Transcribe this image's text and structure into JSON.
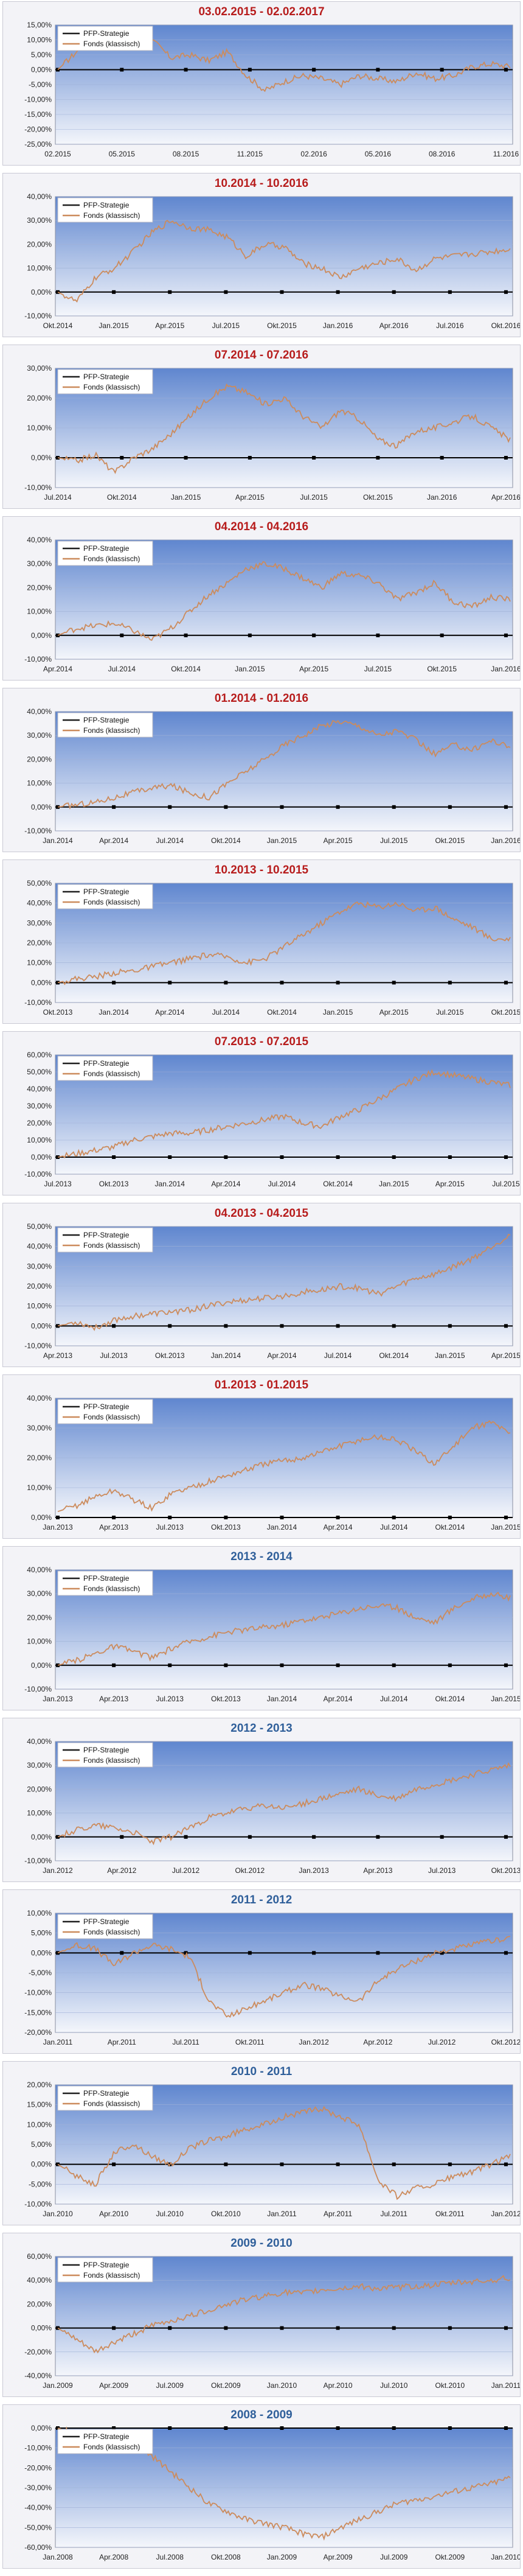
{
  "chart_data": [
    {
      "type": "line",
      "title": "03.02.2015 - 02.02.2017",
      "title_color": "#b71c1c",
      "x_ticks": [
        "02.2015",
        "05.2015",
        "08.2015",
        "11.2015",
        "02.2016",
        "05.2016",
        "08.2016",
        "11.2016"
      ],
      "y_ticks": [
        "15,00%",
        "10,00%",
        "5,00%",
        "0,00%",
        "-5,00%",
        "-10,00%",
        "-15,00%",
        "-20,00%",
        "-25,00%"
      ],
      "ylim": [
        -25,
        15
      ],
      "series": [
        {
          "name": "PFP-Strategie",
          "color": "#1f1f1f",
          "values": [
            0,
            0
          ]
        },
        {
          "name": "Fonds (klassisch)",
          "color": "#cc8b5c",
          "values": [
            0,
            6,
            12,
            11,
            9,
            10,
            4,
            5,
            3,
            6,
            -2,
            -7,
            -4,
            -2,
            -3,
            -5,
            -2,
            -3,
            -4,
            -1,
            -3,
            -2,
            1,
            2,
            1
          ]
        }
      ]
    },
    {
      "type": "line",
      "title": "10.2014 - 10.2016",
      "title_color": "#b71c1c",
      "x_ticks": [
        "Okt.2014",
        "Jan.2015",
        "Apr.2015",
        "Jul.2015",
        "Okt.2015",
        "Jan.2016",
        "Apr.2016",
        "Jul.2016",
        "Okt.2016"
      ],
      "y_ticks": [
        "40,00%",
        "30,00%",
        "20,00%",
        "10,00%",
        "0,00%",
        "-10,00%"
      ],
      "ylim": [
        -10,
        40
      ],
      "series": [
        {
          "name": "PFP-Strategie",
          "color": "#1f1f1f",
          "values": [
            0,
            0
          ]
        },
        {
          "name": "Fonds (klassisch)",
          "color": "#cc8b5c",
          "values": [
            0,
            -4,
            6,
            10,
            17,
            25,
            30,
            27,
            26,
            23,
            15,
            20,
            19,
            12,
            10,
            6,
            10,
            12,
            14,
            9,
            14,
            15,
            16,
            17,
            18
          ]
        }
      ]
    },
    {
      "type": "line",
      "title": "07.2014 - 07.2016",
      "title_color": "#b71c1c",
      "x_ticks": [
        "Jul.2014",
        "Okt.2014",
        "Jan.2015",
        "Apr.2015",
        "Jul.2015",
        "Okt.2015",
        "Jan.2016",
        "Apr.2016"
      ],
      "y_ticks": [
        "30,00%",
        "20,00%",
        "10,00%",
        "0,00%",
        "-10,00%"
      ],
      "ylim": [
        -10,
        30
      ],
      "series": [
        {
          "name": "PFP-Strategie",
          "color": "#1f1f1f",
          "values": [
            0,
            0
          ]
        },
        {
          "name": "Fonds (klassisch)",
          "color": "#cc8b5c",
          "values": [
            0,
            -1,
            1,
            -5,
            0,
            3,
            8,
            14,
            20,
            24,
            22,
            18,
            20,
            14,
            10,
            16,
            13,
            6,
            4,
            9,
            10,
            12,
            14,
            10,
            6
          ]
        }
      ]
    },
    {
      "type": "line",
      "title": "04.2014 - 04.2016",
      "title_color": "#b71c1c",
      "x_ticks": [
        "Apr.2014",
        "Jul.2014",
        "Okt.2014",
        "Jan.2015",
        "Apr.2015",
        "Jul.2015",
        "Okt.2015",
        "Jan.2016"
      ],
      "y_ticks": [
        "40,00%",
        "30,00%",
        "20,00%",
        "10,00%",
        "0,00%",
        "-10,00%"
      ],
      "ylim": [
        -10,
        40
      ],
      "series": [
        {
          "name": "PFP-Strategie",
          "color": "#1f1f1f",
          "values": [
            0,
            0
          ]
        },
        {
          "name": "Fonds (klassisch)",
          "color": "#cc8b5c",
          "values": [
            0,
            3,
            4,
            5,
            2,
            -2,
            3,
            10,
            17,
            22,
            28,
            30,
            28,
            24,
            20,
            26,
            25,
            22,
            15,
            18,
            22,
            14,
            12,
            16,
            15
          ]
        }
      ]
    },
    {
      "type": "line",
      "title": "01.2014 - 01.2016",
      "title_color": "#b71c1c",
      "x_ticks": [
        "Jan.2014",
        "Apr.2014",
        "Jul.2014",
        "Okt.2014",
        "Jan.2015",
        "Apr.2015",
        "Jul.2015",
        "Okt.2015",
        "Jan.2016"
      ],
      "y_ticks": [
        "40,00%",
        "30,00%",
        "20,00%",
        "10,00%",
        "0,00%",
        "-10,00%"
      ],
      "ylim": [
        -10,
        40
      ],
      "series": [
        {
          "name": "PFP-Strategie",
          "color": "#1f1f1f",
          "values": [
            0,
            0
          ]
        },
        {
          "name": "Fonds (klassisch)",
          "color": "#cc8b5c",
          "values": [
            0,
            1,
            2,
            4,
            6,
            8,
            9,
            6,
            4,
            10,
            15,
            20,
            26,
            30,
            34,
            36,
            34,
            30,
            32,
            28,
            22,
            26,
            24,
            28,
            25
          ]
        }
      ]
    },
    {
      "type": "line",
      "title": "10.2013 - 10.2015",
      "title_color": "#b71c1c",
      "x_ticks": [
        "Okt.2013",
        "Jan.2014",
        "Apr.2014",
        "Jul.2014",
        "Okt.2014",
        "Jan.2015",
        "Apr.2015",
        "Jul.2015",
        "Okt.2015"
      ],
      "y_ticks": [
        "50,00%",
        "40,00%",
        "30,00%",
        "20,00%",
        "10,00%",
        "0,00%",
        "-10,00%"
      ],
      "ylim": [
        -10,
        50
      ],
      "series": [
        {
          "name": "PFP-Strategie",
          "color": "#1f1f1f",
          "values": [
            0,
            0
          ]
        },
        {
          "name": "Fonds (klassisch)",
          "color": "#cc8b5c",
          "values": [
            0,
            2,
            3,
            5,
            6,
            8,
            10,
            12,
            14,
            13,
            10,
            12,
            18,
            24,
            30,
            36,
            40,
            38,
            40,
            36,
            38,
            32,
            28,
            22,
            22
          ]
        }
      ]
    },
    {
      "type": "line",
      "title": "07.2013 - 07.2015",
      "title_color": "#b71c1c",
      "x_ticks": [
        "Jul.2013",
        "Okt.2013",
        "Jan.2014",
        "Apr.2014",
        "Jul.2014",
        "Okt.2014",
        "Jan.2015",
        "Apr.2015",
        "Jul.2015"
      ],
      "y_ticks": [
        "60,00%",
        "50,00%",
        "40,00%",
        "30,00%",
        "20,00%",
        "10,00%",
        "0,00%",
        "-10,00%"
      ],
      "ylim": [
        -10,
        60
      ],
      "series": [
        {
          "name": "PFP-Strategie",
          "color": "#1f1f1f",
          "values": [
            0,
            0
          ]
        },
        {
          "name": "Fonds (klassisch)",
          "color": "#cc8b5c",
          "values": [
            0,
            2,
            4,
            6,
            10,
            12,
            14,
            14,
            16,
            18,
            20,
            22,
            24,
            20,
            18,
            24,
            28,
            34,
            40,
            46,
            50,
            48,
            46,
            44,
            42
          ]
        }
      ]
    },
    {
      "type": "line",
      "title": "04.2013 - 04.2015",
      "title_color": "#b71c1c",
      "x_ticks": [
        "Apr.2013",
        "Jul.2013",
        "Okt.2013",
        "Jan.2014",
        "Apr.2014",
        "Jul.2014",
        "Okt.2014",
        "Jan.2015",
        "Apr.2015"
      ],
      "y_ticks": [
        "50,00%",
        "40,00%",
        "30,00%",
        "20,00%",
        "10,00%",
        "0,00%",
        "-10,00%"
      ],
      "ylim": [
        -10,
        50
      ],
      "series": [
        {
          "name": "PFP-Strategie",
          "color": "#1f1f1f",
          "values": [
            0,
            0
          ]
        },
        {
          "name": "Fonds (klassisch)",
          "color": "#cc8b5c",
          "values": [
            0,
            2,
            -1,
            3,
            5,
            6,
            7,
            8,
            10,
            12,
            13,
            14,
            15,
            17,
            18,
            20,
            19,
            16,
            20,
            24,
            26,
            30,
            34,
            40,
            46
          ]
        }
      ]
    },
    {
      "type": "line",
      "title": "01.2013 - 01.2015",
      "title_color": "#b71c1c",
      "x_ticks": [
        "Jan.2013",
        "Apr.2013",
        "Jul.2013",
        "Okt.2013",
        "Jan.2014",
        "Apr.2014",
        "Jul.2014",
        "Okt.2014",
        "Jan.2015"
      ],
      "y_ticks": [
        "40,00%",
        "30,00%",
        "20,00%",
        "10,00%",
        "0,00%"
      ],
      "ylim": [
        0,
        40
      ],
      "series": [
        {
          "name": "PFP-Strategie",
          "color": "#1f1f1f",
          "values": [
            0,
            0
          ]
        },
        {
          "name": "Fonds (klassisch)",
          "color": "#cc8b5c",
          "values": [
            2,
            4,
            7,
            9,
            6,
            3,
            8,
            10,
            12,
            14,
            16,
            18,
            19,
            20,
            22,
            24,
            26,
            27,
            26,
            22,
            18,
            24,
            30,
            32,
            28
          ]
        }
      ]
    },
    {
      "type": "line",
      "title": "2013 - 2014",
      "title_color": "#2f5f9a",
      "x_ticks": [
        "Jan.2013",
        "Apr.2013",
        "Jul.2013",
        "Okt.2013",
        "Jan.2014",
        "Apr.2014",
        "Jul.2014",
        "Okt.2014",
        "Jan.2015"
      ],
      "y_ticks": [
        "40,00%",
        "30,00%",
        "20,00%",
        "10,00%",
        "0,00%",
        "-10,00%"
      ],
      "ylim": [
        -10,
        40
      ],
      "series": [
        {
          "name": "PFP-Strategie",
          "color": "#1f1f1f",
          "values": [
            0,
            0
          ]
        },
        {
          "name": "Fonds (klassisch)",
          "color": "#cc8b5c",
          "values": [
            0,
            2,
            5,
            8,
            6,
            3,
            7,
            10,
            12,
            14,
            15,
            16,
            17,
            19,
            20,
            22,
            24,
            25,
            24,
            20,
            18,
            24,
            28,
            30,
            28
          ]
        }
      ]
    },
    {
      "type": "line",
      "title": "2012 - 2013",
      "title_color": "#2f5f9a",
      "x_ticks": [
        "Jan.2012",
        "Apr.2012",
        "Jul.2012",
        "Okt.2012",
        "Jan.2013",
        "Apr.2013",
        "Jul.2013",
        "Okt.2013"
      ],
      "y_ticks": [
        "40,00%",
        "30,00%",
        "20,00%",
        "10,00%",
        "0,00%",
        "-10,00%"
      ],
      "ylim": [
        -10,
        40
      ],
      "series": [
        {
          "name": "PFP-Strategie",
          "color": "#1f1f1f",
          "values": [
            0,
            0
          ]
        },
        {
          "name": "Fonds (klassisch)",
          "color": "#cc8b5c",
          "values": [
            0,
            3,
            5,
            4,
            2,
            -2,
            0,
            4,
            8,
            10,
            12,
            13,
            12,
            14,
            16,
            18,
            20,
            17,
            16,
            20,
            22,
            24,
            26,
            28,
            30
          ]
        }
      ]
    },
    {
      "type": "line",
      "title": "2011 - 2012",
      "title_color": "#2f5f9a",
      "x_ticks": [
        "Jan.2011",
        "Apr.2011",
        "Jul.2011",
        "Okt.2011",
        "Jan.2012",
        "Apr.2012",
        "Jul.2012",
        "Okt.2012"
      ],
      "y_ticks": [
        "10,00%",
        "5,00%",
        "0,00%",
        "-5,00%",
        "-10,00%",
        "-15,00%",
        "-20,00%"
      ],
      "ylim": [
        -20,
        10
      ],
      "series": [
        {
          "name": "PFP-Strategie",
          "color": "#1f1f1f",
          "values": [
            0,
            0
          ]
        },
        {
          "name": "Fonds (klassisch)",
          "color": "#cc8b5c",
          "values": [
            0,
            2,
            1,
            -3,
            0,
            2,
            1,
            -1,
            -12,
            -16,
            -14,
            -12,
            -10,
            -8,
            -9,
            -11,
            -12,
            -7,
            -4,
            -2,
            0,
            1,
            2,
            3,
            4
          ]
        }
      ]
    },
    {
      "type": "line",
      "title": "2010 - 2011",
      "title_color": "#2f5f9a",
      "x_ticks": [
        "Jan.2010",
        "Apr.2010",
        "Jul.2010",
        "Okt.2010",
        "Jan.2011",
        "Apr.2011",
        "Jul.2011",
        "Okt.2011",
        "Jan.2012"
      ],
      "y_ticks": [
        "20,00%",
        "15,00%",
        "10,00%",
        "5,00%",
        "0,00%",
        "-5,00%",
        "-10,00%"
      ],
      "ylim": [
        -10,
        20
      ],
      "series": [
        {
          "name": "PFP-Strategie",
          "color": "#1f1f1f",
          "values": [
            0,
            0
          ]
        },
        {
          "name": "Fonds (klassisch)",
          "color": "#cc8b5c",
          "values": [
            0,
            -3,
            -5,
            3,
            5,
            2,
            0,
            4,
            6,
            7,
            9,
            10,
            12,
            13,
            14,
            12,
            10,
            -4,
            -8,
            -6,
            -5,
            -3,
            -2,
            0,
            2
          ]
        }
      ]
    },
    {
      "type": "line",
      "title": "2009 - 2010",
      "title_color": "#2f5f9a",
      "x_ticks": [
        "Jan.2009",
        "Apr.2009",
        "Jul.2009",
        "Okt.2009",
        "Jan.2010",
        "Apr.2010",
        "Jul.2010",
        "Okt.2010",
        "Jan.2011"
      ],
      "y_ticks": [
        "60,00%",
        "40,00%",
        "20,00%",
        "0,00%",
        "-20,00%",
        "-40,00%"
      ],
      "ylim": [
        -40,
        60
      ],
      "series": [
        {
          "name": "PFP-Strategie",
          "color": "#1f1f1f",
          "values": [
            0,
            0
          ]
        },
        {
          "name": "Fonds (klassisch)",
          "color": "#cc8b5c",
          "values": [
            0,
            -10,
            -20,
            -12,
            -5,
            2,
            6,
            10,
            15,
            20,
            24,
            27,
            30,
            29,
            32,
            33,
            35,
            33,
            34,
            35,
            36,
            38,
            39,
            40,
            42
          ]
        }
      ]
    },
    {
      "type": "line",
      "title": "2008 - 2009",
      "title_color": "#2f5f9a",
      "x_ticks": [
        "Jan.2008",
        "Apr.2008",
        "Jul.2008",
        "Okt.2008",
        "Jan.2009",
        "Apr.2009",
        "Jul.2009",
        "Okt.2009",
        "Jan.2010"
      ],
      "y_ticks": [
        "0,00%",
        "-10,00%",
        "-20,00%",
        "-30,00%",
        "-40,00%",
        "-50,00%",
        "-60,00%"
      ],
      "ylim": [
        -60,
        0
      ],
      "series": [
        {
          "name": "PFP-Strategie",
          "color": "#1f1f1f",
          "values": [
            0,
            0
          ]
        },
        {
          "name": "Fonds (klassisch)",
          "color": "#cc8b5c",
          "values": [
            0,
            -3,
            -6,
            -4,
            -8,
            -14,
            -22,
            -30,
            -38,
            -42,
            -46,
            -48,
            -50,
            -53,
            -55,
            -50,
            -46,
            -42,
            -38,
            -36,
            -34,
            -32,
            -30,
            -28,
            -25
          ]
        }
      ]
    }
  ]
}
